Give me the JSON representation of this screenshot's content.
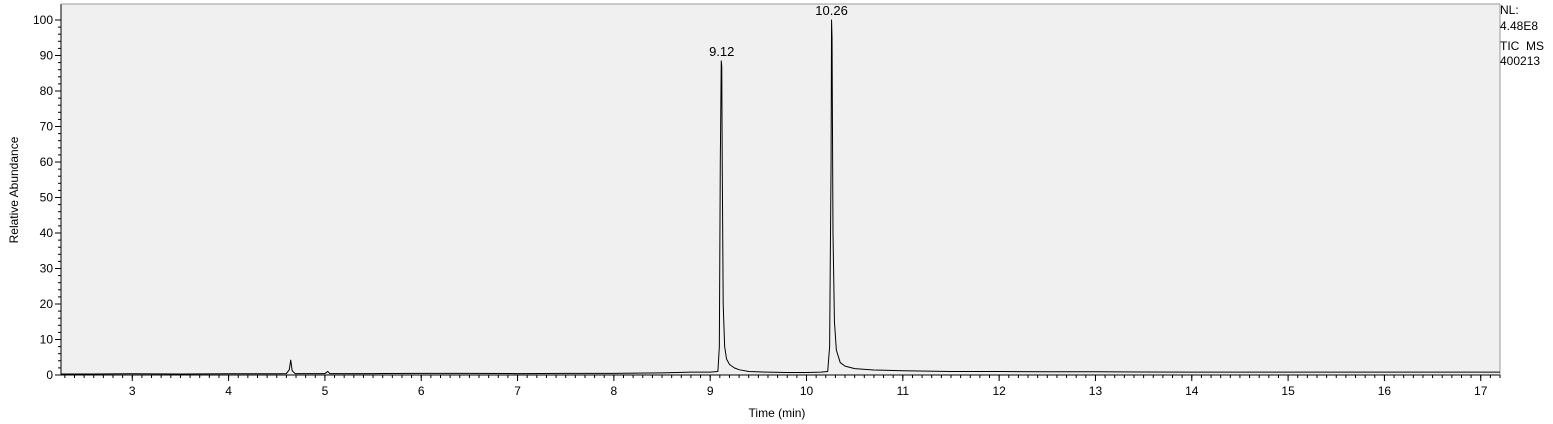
{
  "info": {
    "nl_label": "NL:",
    "nl_value": "4.48E8",
    "scan": "TIC  MS",
    "sample": "400213"
  },
  "chart_data": {
    "type": "line",
    "title": "",
    "xlabel": "Time (min)",
    "ylabel": "Relative Abundance",
    "xlim": [
      2.26,
      17.2
    ],
    "ylim": [
      0,
      100
    ],
    "xticks": [
      3,
      4,
      5,
      6,
      7,
      8,
      9,
      10,
      11,
      12,
      13,
      14,
      15,
      16,
      17
    ],
    "yticks": [
      0,
      10,
      20,
      30,
      40,
      50,
      60,
      70,
      80,
      90,
      100
    ],
    "grid": false,
    "plot_background": "#f0f0f0",
    "line_color": "#000000",
    "peak_labels": [
      {
        "x": 9.12,
        "y": 88.5,
        "text": "9.12"
      },
      {
        "x": 10.26,
        "y": 100,
        "text": "10.26"
      }
    ],
    "series": [
      {
        "x": [
          2.26,
          2.6,
          3.0,
          3.5,
          4.0,
          4.5,
          4.6,
          4.63,
          4.645,
          4.66,
          4.69,
          4.8,
          5.0,
          5.03,
          5.05,
          5.1,
          5.5,
          6.0,
          6.5,
          7.0,
          7.5,
          8.0,
          8.5,
          8.8,
          9.0,
          9.08,
          9.095,
          9.105,
          9.115,
          9.12,
          9.125,
          9.135,
          9.15,
          9.17,
          9.2,
          9.25,
          9.3,
          9.4,
          9.6,
          9.8,
          10.0,
          10.15,
          10.22,
          10.24,
          10.255,
          10.26,
          10.265,
          10.275,
          10.29,
          10.31,
          10.35,
          10.4,
          10.5,
          10.7,
          11.0,
          11.5,
          12.0,
          12.5,
          13.0,
          14.0,
          15.0,
          16.0,
          17.0,
          17.2
        ],
        "y": [
          0.3,
          0.3,
          0.35,
          0.3,
          0.35,
          0.35,
          0.4,
          1.5,
          4.2,
          1.2,
          0.4,
          0.4,
          0.4,
          1.0,
          0.4,
          0.4,
          0.4,
          0.45,
          0.45,
          0.4,
          0.45,
          0.45,
          0.6,
          0.8,
          0.8,
          1.0,
          8.0,
          60.0,
          88.5,
          87.0,
          60.0,
          20.0,
          8.0,
          4.5,
          3.0,
          2.0,
          1.5,
          1.0,
          0.8,
          0.7,
          0.7,
          0.8,
          1.0,
          8.0,
          60.0,
          100.0,
          95.0,
          40.0,
          15.0,
          7.0,
          3.5,
          2.5,
          1.8,
          1.4,
          1.2,
          1.0,
          1.0,
          0.9,
          0.9,
          0.8,
          0.8,
          0.8,
          0.8,
          0.8
        ]
      }
    ]
  }
}
